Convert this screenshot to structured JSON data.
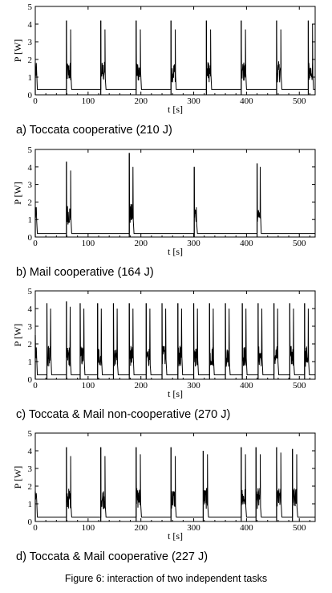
{
  "figure_caption": "Figure 6: interaction of two independent tasks",
  "chart_data": [
    {
      "type": "line",
      "caption": "a) Toccata cooperative (210 J)",
      "xlabel": "t [s]",
      "ylabel": "P [W]",
      "xlim": [
        0,
        530
      ],
      "ylim": [
        0,
        5
      ],
      "xticks": [
        0,
        100,
        200,
        300,
        400,
        500
      ],
      "yticks": [
        0,
        1,
        2,
        3,
        4,
        5
      ],
      "baseline_w": 0.3,
      "series": [
        {
          "bursts": [
            {
              "t": 0,
              "peak": 1.8,
              "tail": 1.8,
              "dur": 4
            },
            {
              "t": 59,
              "peak": 4.2,
              "tail": 3.7,
              "dur": 10
            },
            {
              "t": 124,
              "peak": 4.2,
              "tail": 3.7,
              "dur": 10
            },
            {
              "t": 191,
              "peak": 4.2,
              "tail": 3.7,
              "dur": 10
            },
            {
              "t": 257,
              "peak": 4.2,
              "tail": 3.7,
              "dur": 10
            },
            {
              "t": 324,
              "peak": 4.2,
              "tail": 3.7,
              "dur": 10
            },
            {
              "t": 390,
              "peak": 4.2,
              "tail": 3.7,
              "dur": 10
            },
            {
              "t": 457,
              "peak": 4.2,
              "tail": 3.7,
              "dur": 10
            },
            {
              "t": 517,
              "peak": 4.2,
              "tail": 4.0,
              "dur": 10
            }
          ]
        }
      ]
    },
    {
      "type": "line",
      "caption": "b) Mail cooperative (164 J)",
      "xlabel": "t [s]",
      "ylabel": "P [W]",
      "xlim": [
        0,
        530
      ],
      "ylim": [
        0,
        5
      ],
      "xticks": [
        0,
        100,
        200,
        300,
        400,
        500
      ],
      "yticks": [
        0,
        1,
        2,
        3,
        4,
        5
      ],
      "baseline_w": 0.2,
      "series": [
        {
          "bursts": [
            {
              "t": 0,
              "peak": 1.7,
              "tail": 1.7,
              "dur": 4
            },
            {
              "t": 59,
              "peak": 4.3,
              "tail": 3.8,
              "dur": 10
            },
            {
              "t": 178,
              "peak": 4.8,
              "tail": 4.0,
              "dur": 9
            },
            {
              "t": 301,
              "peak": 4.0,
              "tail": 1.7,
              "dur": 6
            },
            {
              "t": 420,
              "peak": 4.2,
              "tail": 4.0,
              "dur": 8
            }
          ]
        }
      ]
    },
    {
      "type": "line",
      "caption": "c) Toccata & Mail non-cooperative (270 J)",
      "xlabel": "t [s]",
      "ylabel": "P [W]",
      "xlim": [
        0,
        530
      ],
      "ylim": [
        0,
        5
      ],
      "xticks": [
        0,
        100,
        200,
        300,
        400,
        500
      ],
      "yticks": [
        0,
        1,
        2,
        3,
        4,
        5
      ],
      "baseline_w": 0.25,
      "series": [
        {
          "bursts": [
            {
              "t": 0,
              "peak": 2.5,
              "tail": 1.8,
              "dur": 4
            },
            {
              "t": 22,
              "peak": 4.3,
              "tail": 4.0,
              "dur": 9
            },
            {
              "t": 59,
              "peak": 4.4,
              "tail": 4.1,
              "dur": 9
            },
            {
              "t": 85,
              "peak": 4.3,
              "tail": 4.0,
              "dur": 9
            },
            {
              "t": 118,
              "peak": 4.3,
              "tail": 4.0,
              "dur": 9
            },
            {
              "t": 148,
              "peak": 4.3,
              "tail": 4.0,
              "dur": 9
            },
            {
              "t": 178,
              "peak": 4.3,
              "tail": 4.0,
              "dur": 9
            },
            {
              "t": 210,
              "peak": 4.3,
              "tail": 4.0,
              "dur": 9
            },
            {
              "t": 240,
              "peak": 4.3,
              "tail": 4.0,
              "dur": 9
            },
            {
              "t": 270,
              "peak": 4.3,
              "tail": 4.0,
              "dur": 9
            },
            {
              "t": 300,
              "peak": 4.3,
              "tail": 4.0,
              "dur": 9
            },
            {
              "t": 330,
              "peak": 4.3,
              "tail": 4.0,
              "dur": 9
            },
            {
              "t": 360,
              "peak": 4.3,
              "tail": 4.0,
              "dur": 9
            },
            {
              "t": 392,
              "peak": 4.3,
              "tail": 4.0,
              "dur": 9
            },
            {
              "t": 422,
              "peak": 4.3,
              "tail": 4.0,
              "dur": 9
            },
            {
              "t": 452,
              "peak": 4.3,
              "tail": 4.0,
              "dur": 9
            },
            {
              "t": 482,
              "peak": 4.3,
              "tail": 4.0,
              "dur": 9
            },
            {
              "t": 510,
              "peak": 4.3,
              "tail": 4.0,
              "dur": 9
            }
          ]
        }
      ]
    },
    {
      "type": "line",
      "caption": "d) Toccata & Mail cooperative (227 J)",
      "xlabel": "t [s]",
      "ylabel": "P [W]",
      "xlim": [
        0,
        530
      ],
      "ylim": [
        0,
        5
      ],
      "xticks": [
        0,
        100,
        200,
        300,
        400,
        500
      ],
      "yticks": [
        0,
        1,
        2,
        3,
        4,
        5
      ],
      "baseline_w": 0.25,
      "series": [
        {
          "bursts": [
            {
              "t": 0,
              "peak": 1.7,
              "tail": 1.6,
              "dur": 4
            },
            {
              "t": 59,
              "peak": 4.2,
              "tail": 3.7,
              "dur": 10
            },
            {
              "t": 124,
              "peak": 4.2,
              "tail": 3.7,
              "dur": 10
            },
            {
              "t": 191,
              "peak": 4.2,
              "tail": 3.8,
              "dur": 10
            },
            {
              "t": 257,
              "peak": 4.2,
              "tail": 3.7,
              "dur": 10
            },
            {
              "t": 318,
              "peak": 4.0,
              "tail": 3.8,
              "dur": 10
            },
            {
              "t": 390,
              "peak": 4.2,
              "tail": 3.8,
              "dur": 10
            },
            {
              "t": 418,
              "peak": 4.2,
              "tail": 3.8,
              "dur": 10
            },
            {
              "t": 457,
              "peak": 4.2,
              "tail": 3.9,
              "dur": 10
            },
            {
              "t": 487,
              "peak": 4.1,
              "tail": 3.8,
              "dur": 10
            }
          ]
        }
      ]
    }
  ]
}
